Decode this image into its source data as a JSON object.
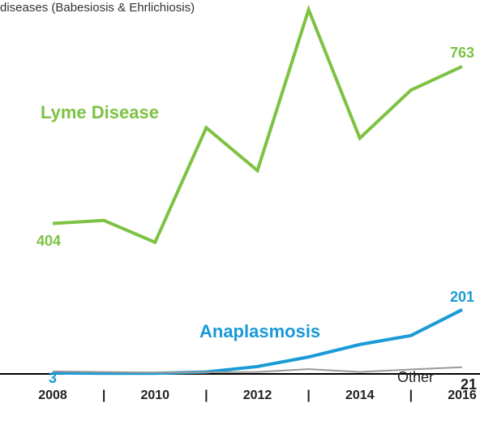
{
  "chart_data": {
    "type": "line",
    "subtitle": "diseases (Babesiosis & Ehrlichiosis)",
    "categories": [
      "2008",
      "|",
      "2010",
      "|",
      "2012",
      "|",
      "2014",
      "|",
      "2016"
    ],
    "ylim": [
      60,
      915
    ],
    "y2lim": [
      0,
      1170
    ],
    "series": [
      {
        "name": "Lyme Disease",
        "color": "#7dc242",
        "values": [
          404,
          411,
          361,
          623,
          525,
          893,
          599,
          709,
          763
        ]
      },
      {
        "name": "Anaplasmosis",
        "color": "#1a9ad6",
        "axis": "y2",
        "values": [
          3,
          2,
          2,
          6,
          23,
          53,
          92,
          120,
          201
        ]
      },
      {
        "name": "Other",
        "color": "#999999",
        "axis": "y2",
        "values": [
          8,
          6,
          4,
          5,
          6,
          15,
          6,
          14,
          21
        ]
      }
    ]
  }
}
